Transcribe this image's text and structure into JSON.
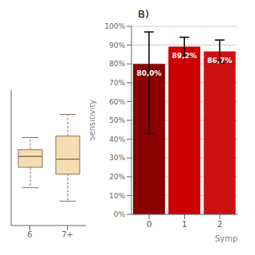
{
  "chart_data": [
    {
      "type": "box",
      "categories": [
        "6",
        "7+"
      ],
      "whisker_low": [
        2.8,
        1.8
      ],
      "q1": [
        4.3,
        3.8
      ],
      "median": [
        5.1,
        4.9
      ],
      "q3": [
        5.6,
        6.6
      ],
      "whisker_high": [
        6.5,
        8.2
      ],
      "color": "#F5DEB3",
      "ylim": [
        0,
        10
      ],
      "tick_labels": "x"
    },
    {
      "type": "bar",
      "title": "B)",
      "categories": [
        "0",
        "1",
        "2"
      ],
      "values": [
        80.0,
        89.2,
        86.7
      ],
      "colors": [
        "#8B0000",
        "#CC0000",
        "#CC1111"
      ],
      "errors_upper": [
        17.0,
        5.0,
        6.0
      ],
      "errors_lower": [
        37.0,
        5.0,
        6.0
      ],
      "data_labels": true,
      "value_labels": [
        "80,0%",
        "89,2%",
        "86,7%"
      ],
      "xlabel": "Symp",
      "ylabel": "Sensitivity",
      "ylim": [
        0,
        100
      ],
      "yticks": [
        {
          "value": 0,
          "label": "0%"
        },
        {
          "value": 10,
          "label": "10%"
        },
        {
          "value": 20,
          "label": "20%"
        },
        {
          "value": 30,
          "label": "30%"
        },
        {
          "value": 40,
          "label": "40%"
        },
        {
          "value": 50,
          "label": "50%"
        },
        {
          "value": 60,
          "label": "60%"
        },
        {
          "value": 70,
          "label": "70%"
        },
        {
          "value": 80,
          "label": "80%"
        },
        {
          "value": 90,
          "label": "90%"
        },
        {
          "value": 100,
          "label": "100%"
        }
      ],
      "grid": true
    }
  ]
}
